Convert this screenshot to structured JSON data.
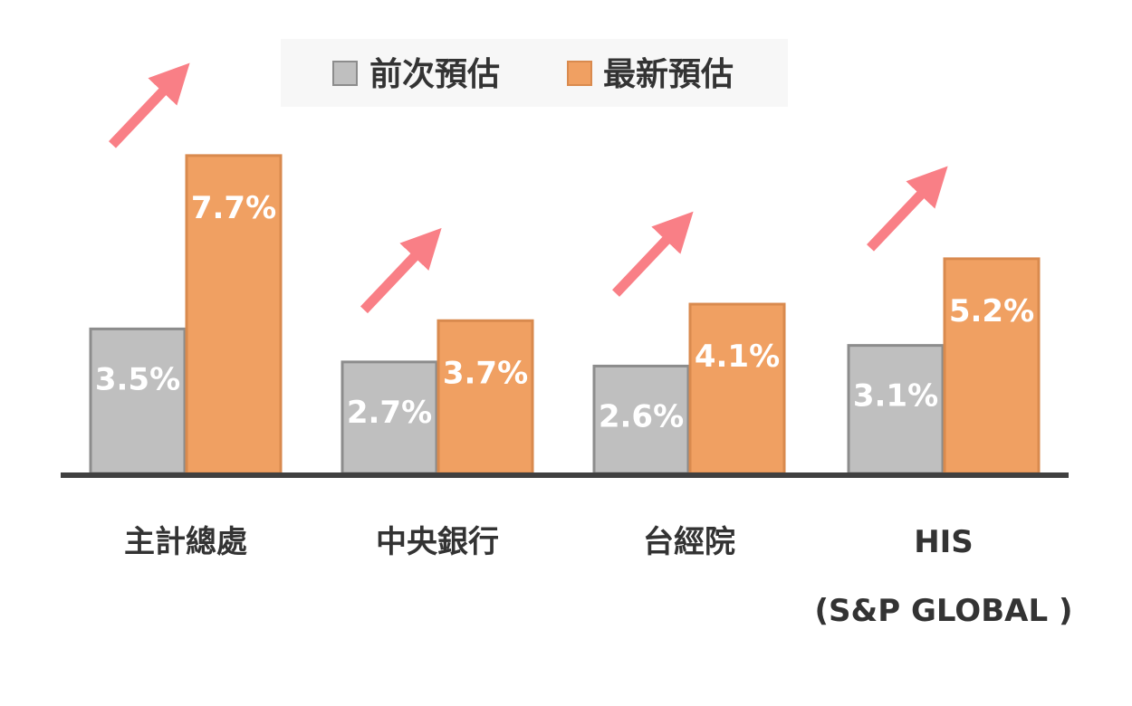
{
  "chart_data": {
    "type": "bar",
    "categories": [
      [
        "主計總處"
      ],
      [
        "中央銀行"
      ],
      [
        "台經院"
      ],
      [
        "HIS",
        "(S&P GLOBAL )"
      ]
    ],
    "series": [
      {
        "name": "前次預估",
        "values": [
          3.5,
          2.7,
          2.6,
          3.1
        ],
        "labels": [
          "3.5%",
          "2.7%",
          "2.6%",
          "3.1%"
        ],
        "color": "#BFBFBF",
        "stroke": "#8C8C8C"
      },
      {
        "name": "最新預估",
        "values": [
          7.7,
          3.7,
          4.1,
          5.2
        ],
        "labels": [
          "7.7%",
          "3.7%",
          "4.1%",
          "5.2%"
        ],
        "color": "#F0A062",
        "stroke": "#D98A4E"
      }
    ],
    "ylim": [
      0,
      9
    ],
    "grid": false,
    "legend": "top-center",
    "title": "",
    "xlabel": "",
    "ylabel": "",
    "annotations": "upward-trend-arrows",
    "arrow_color": "#F97F86",
    "axis_color": "#404040"
  }
}
